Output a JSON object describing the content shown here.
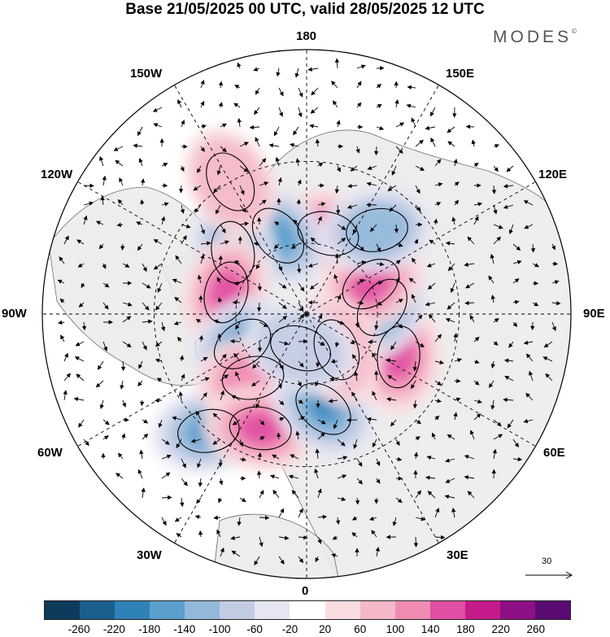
{
  "title": "Base 21/05/2025 00 UTC, valid 28/05/2025 12 UTC",
  "brand": "MODES",
  "brand_mark": "©",
  "longitude_labels": {
    "top": "180",
    "bottom": "0",
    "left": "90W",
    "right": "90E",
    "upper_left_1": "150W",
    "upper_left_2": "120W",
    "upper_right_1": "150E",
    "upper_right_2": "120E",
    "lower_left_1": "60W",
    "lower_left_2": "30W",
    "lower_right_1": "60E",
    "lower_right_2": "30E"
  },
  "wind_scale_label": "30",
  "colorbar": {
    "colors": [
      "#0d3b5c",
      "#1a5f8e",
      "#2f82b7",
      "#5a9fcb",
      "#92b9da",
      "#c2cce3",
      "#e6e5f2",
      "#ffffff",
      "#f9dde0",
      "#f5b8c8",
      "#f08cb4",
      "#e04fa3",
      "#c51b8a",
      "#8f0f86",
      "#5a0b73"
    ],
    "ticks": [
      "-260",
      "-220",
      "-180",
      "-140",
      "-100",
      "-60",
      "-20",
      "20",
      "60",
      "100",
      "140",
      "180",
      "220",
      "260"
    ]
  },
  "anomaly_centers": [
    {
      "sign": "positive",
      "level": 140,
      "lon": 165,
      "lat": 55
    },
    {
      "sign": "negative",
      "level": 140,
      "lon": -160,
      "lat": 55
    },
    {
      "sign": "negative",
      "level": 100,
      "lon": -130,
      "lat": 50
    },
    {
      "sign": "positive",
      "level": 140,
      "lon": -105,
      "lat": 55
    },
    {
      "sign": "negative",
      "level": 140,
      "lon": -65,
      "lat": 60
    },
    {
      "sign": "negative",
      "level": 140,
      "lon": -40,
      "lat": 30
    },
    {
      "sign": "positive",
      "level": 100,
      "lon": -40,
      "lat": 55
    },
    {
      "sign": "positive",
      "level": 140,
      "lon": -22,
      "lat": 40
    },
    {
      "sign": "negative",
      "level": 180,
      "lon": 10,
      "lat": 50
    },
    {
      "sign": "positive",
      "level": 140,
      "lon": 65,
      "lat": 48
    },
    {
      "sign": "negative",
      "level": 180,
      "lon": 95,
      "lat": 58
    },
    {
      "sign": "positive",
      "level": 140,
      "lon": 115,
      "lat": 60
    },
    {
      "sign": "negative",
      "level": 100,
      "lon": 140,
      "lat": 45
    },
    {
      "sign": "positive",
      "level": 60,
      "lon": 40,
      "lat": 70
    },
    {
      "sign": "negative",
      "level": 60,
      "lon": -10,
      "lat": 75
    },
    {
      "sign": "positive",
      "level": 60,
      "lon": -150,
      "lat": 30
    }
  ]
}
